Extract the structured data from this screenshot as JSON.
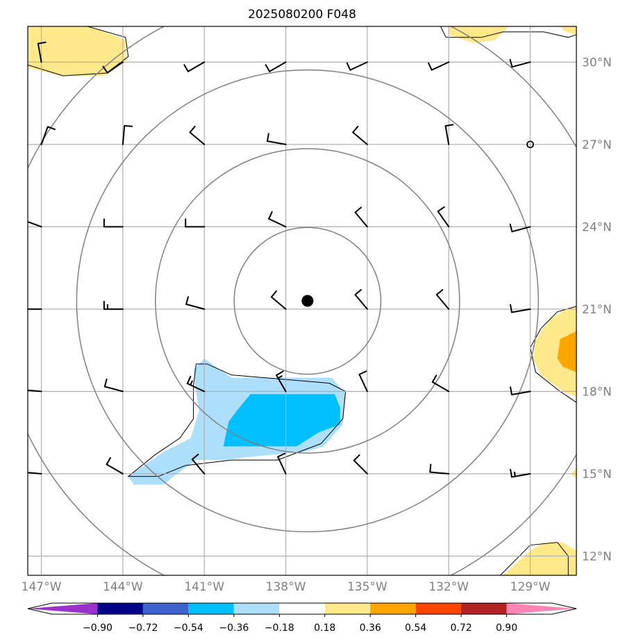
{
  "title": "2025080200 F048",
  "map": {
    "lon_min": -147.5,
    "lon_max": -127.3,
    "lat_min": 11.3,
    "lat_max": 31.3,
    "lat_ticks": [
      {
        "value": 12,
        "label": "12°N"
      },
      {
        "value": 15,
        "label": "15°N"
      },
      {
        "value": 18,
        "label": "18°N"
      },
      {
        "value": 21,
        "label": "21°N"
      },
      {
        "value": 24,
        "label": "24°N"
      },
      {
        "value": 27,
        "label": "27°N"
      },
      {
        "value": 30,
        "label": "30°N"
      }
    ],
    "lon_ticks": [
      {
        "value": -147,
        "label": "147°W"
      },
      {
        "value": -144,
        "label": "144°W"
      },
      {
        "value": -141,
        "label": "141°W"
      },
      {
        "value": -138,
        "label": "138°W"
      },
      {
        "value": -135,
        "label": "135°W"
      },
      {
        "value": -132,
        "label": "132°W"
      },
      {
        "value": -129,
        "label": "129°W"
      }
    ],
    "storm_center": {
      "lon": -137.2,
      "lat": 21.3
    },
    "range_rings_deg": [
      2.7,
      5.6,
      8.5,
      11.4
    ],
    "barb_lons": [
      -147,
      -144,
      -141,
      -138,
      -135,
      -132,
      -129
    ],
    "barb_lats": [
      30,
      27,
      24,
      21,
      18,
      15,
      12
    ],
    "wind_barbs": [
      {
        "lon": -147,
        "lat": 30,
        "dir": 350,
        "spd": 10
      },
      {
        "lon": -144,
        "lat": 30,
        "dir": 235,
        "spd": 10
      },
      {
        "lon": -141,
        "lat": 30,
        "dir": 240,
        "spd": 10
      },
      {
        "lon": -138,
        "lat": 30,
        "dir": 240,
        "spd": 10
      },
      {
        "lon": -135,
        "lat": 30,
        "dir": 245,
        "spd": 10
      },
      {
        "lon": -132,
        "lat": 30,
        "dir": 245,
        "spd": 10
      },
      {
        "lon": -129,
        "lat": 30,
        "dir": 255,
        "spd": 10
      },
      {
        "lon": -147,
        "lat": 27,
        "dir": 20,
        "spd": 10
      },
      {
        "lon": -144,
        "lat": 27,
        "dir": 5,
        "spd": 10
      },
      {
        "lon": -141,
        "lat": 27,
        "dir": 310,
        "spd": 10
      },
      {
        "lon": -138,
        "lat": 27,
        "dir": 280,
        "spd": 10
      },
      {
        "lon": -135,
        "lat": 27,
        "dir": 310,
        "spd": 10
      },
      {
        "lon": -132,
        "lat": 27,
        "dir": 350,
        "spd": 10
      },
      {
        "lon": -129,
        "lat": 27,
        "dir": 0,
        "spd": 0
      },
      {
        "lon": -147,
        "lat": 24,
        "dir": 290,
        "spd": 10
      },
      {
        "lon": -144,
        "lat": 24,
        "dir": 270,
        "spd": 10
      },
      {
        "lon": -141,
        "lat": 24,
        "dir": 270,
        "spd": 10
      },
      {
        "lon": -138,
        "lat": 24,
        "dir": 295,
        "spd": 10
      },
      {
        "lon": -135,
        "lat": 24,
        "dir": 320,
        "spd": 10
      },
      {
        "lon": -132,
        "lat": 24,
        "dir": 325,
        "spd": 10
      },
      {
        "lon": -129,
        "lat": 24,
        "dir": 255,
        "spd": 10
      },
      {
        "lon": -147,
        "lat": 21,
        "dir": 270,
        "spd": 15
      },
      {
        "lon": -144,
        "lat": 21,
        "dir": 270,
        "spd": 15
      },
      {
        "lon": -141,
        "lat": 21,
        "dir": 285,
        "spd": 10
      },
      {
        "lon": -138,
        "lat": 21,
        "dir": 310,
        "spd": 10
      },
      {
        "lon": -135,
        "lat": 21,
        "dir": 320,
        "spd": 10
      },
      {
        "lon": -132,
        "lat": 21,
        "dir": 320,
        "spd": 10
      },
      {
        "lon": -129,
        "lat": 21,
        "dir": 260,
        "spd": 10
      },
      {
        "lon": -147,
        "lat": 18,
        "dir": 275,
        "spd": 15
      },
      {
        "lon": -144,
        "lat": 18,
        "dir": 285,
        "spd": 10
      },
      {
        "lon": -141,
        "lat": 18,
        "dir": 295,
        "spd": 15
      },
      {
        "lon": -138,
        "lat": 18,
        "dir": 330,
        "spd": 15
      },
      {
        "lon": -135,
        "lat": 18,
        "dir": 335,
        "spd": 10
      },
      {
        "lon": -132,
        "lat": 18,
        "dir": 300,
        "spd": 10
      },
      {
        "lon": -129,
        "lat": 18,
        "dir": 260,
        "spd": 10
      },
      {
        "lon": -147,
        "lat": 15,
        "dir": 275,
        "spd": 10
      },
      {
        "lon": -144,
        "lat": 15,
        "dir": 300,
        "spd": 10
      },
      {
        "lon": -141,
        "lat": 15,
        "dir": 320,
        "spd": 10
      },
      {
        "lon": -138,
        "lat": 15,
        "dir": 335,
        "spd": 10
      },
      {
        "lon": -135,
        "lat": 15,
        "dir": 315,
        "spd": 10
      },
      {
        "lon": -132,
        "lat": 15,
        "dir": 275,
        "spd": 10
      },
      {
        "lon": -129,
        "lat": 15,
        "dir": 260,
        "spd": 15
      }
    ],
    "shaded_regions": [
      {
        "level": "0.18 to 0.36",
        "color": "#ffe98a",
        "points": [
          [
            -147.5,
            31.3
          ],
          [
            -145.2,
            31.3
          ],
          [
            -143.9,
            30.8
          ],
          [
            -143.9,
            30.0
          ],
          [
            -144.7,
            29.5
          ],
          [
            -146.3,
            29.5
          ],
          [
            -147.5,
            29.8
          ]
        ]
      },
      {
        "level": "0.18 to 0.36",
        "color": "#ffe98a",
        "points": [
          [
            -132.0,
            31.3
          ],
          [
            -129.8,
            31.3
          ],
          [
            -130.3,
            30.8
          ],
          [
            -131.1,
            30.7
          ],
          [
            -132.0,
            31.0
          ]
        ]
      },
      {
        "level": "0.18 to 0.36",
        "color": "#ffe98a",
        "points": [
          [
            -127.9,
            31.3
          ],
          [
            -127.3,
            31.3
          ],
          [
            -127.3,
            31.0
          ],
          [
            -127.7,
            31.1
          ]
        ]
      },
      {
        "level": "0.18 to 0.36",
        "color": "#ffe98a",
        "points": [
          [
            -127.3,
            21.1
          ],
          [
            -127.7,
            21.0
          ],
          [
            -128.3,
            20.6
          ],
          [
            -128.8,
            19.9
          ],
          [
            -128.9,
            19.2
          ],
          [
            -128.6,
            18.6
          ],
          [
            -127.8,
            18.0
          ],
          [
            -127.3,
            17.8
          ]
        ]
      },
      {
        "level": "0.36 to 0.54",
        "color": "#ffa500",
        "points": [
          [
            -127.3,
            20.2
          ],
          [
            -127.9,
            19.9
          ],
          [
            -128.0,
            19.2
          ],
          [
            -127.8,
            18.9
          ],
          [
            -127.3,
            18.7
          ]
        ]
      },
      {
        "level": "0.18 to 0.36",
        "color": "#ffe98a",
        "points": [
          [
            -127.3,
            15.2
          ],
          [
            -127.5,
            15.0
          ],
          [
            -127.3,
            14.8
          ]
        ]
      },
      {
        "level": "0.18 to 0.36",
        "color": "#ffe98a",
        "points": [
          [
            -130.0,
            11.3
          ],
          [
            -129.0,
            12.2
          ],
          [
            -128.5,
            12.5
          ],
          [
            -127.8,
            12.5
          ],
          [
            -127.3,
            12.2
          ],
          [
            -127.3,
            11.3
          ]
        ]
      },
      {
        "level": "-0.36 to -0.18",
        "color": "#aedffa",
        "points": [
          [
            -141.4,
            18.8
          ],
          [
            -141.0,
            19.2
          ],
          [
            -140.0,
            18.5
          ],
          [
            -136.3,
            18.5
          ],
          [
            -135.8,
            17.9
          ],
          [
            -135.9,
            16.8
          ],
          [
            -136.6,
            16.0
          ],
          [
            -137.3,
            15.8
          ],
          [
            -139.5,
            15.6
          ],
          [
            -140.2,
            15.5
          ],
          [
            -141.3,
            15.5
          ],
          [
            -142.0,
            15.0
          ],
          [
            -142.5,
            14.6
          ],
          [
            -143.6,
            14.6
          ],
          [
            -143.8,
            14.9
          ],
          [
            -142.5,
            15.8
          ],
          [
            -141.5,
            16.3
          ],
          [
            -141.2,
            17.3
          ],
          [
            -141.3,
            18.0
          ]
        ]
      },
      {
        "level": "-0.54 to -0.36",
        "color": "#00bfff",
        "points": [
          [
            -139.3,
            17.9
          ],
          [
            -136.2,
            17.9
          ],
          [
            -136.0,
            17.4
          ],
          [
            -136.0,
            16.8
          ],
          [
            -136.8,
            16.5
          ],
          [
            -137.6,
            16.0
          ],
          [
            -140.3,
            16.0
          ],
          [
            -140.1,
            16.9
          ],
          [
            -139.8,
            17.3
          ]
        ]
      }
    ],
    "coastlines": [
      [
        [
          -147.5,
          31.3
        ],
        [
          -145.3,
          31.3
        ],
        [
          -143.9,
          30.9
        ],
        [
          -143.8,
          30.2
        ],
        [
          -144.6,
          29.6
        ],
        [
          -146.2,
          29.5
        ],
        [
          -147.5,
          29.9
        ]
      ],
      [
        [
          -132.3,
          31.3
        ],
        [
          -132.1,
          30.9
        ],
        [
          -130.8,
          30.9
        ],
        [
          -130.0,
          31.1
        ],
        [
          -128.5,
          31.1
        ],
        [
          -127.6,
          30.9
        ],
        [
          -127.3,
          31.0
        ]
      ],
      [
        [
          -127.3,
          21.1
        ],
        [
          -128.0,
          20.9
        ],
        [
          -128.6,
          20.3
        ],
        [
          -129.0,
          19.6
        ],
        [
          -128.8,
          18.7
        ],
        [
          -127.9,
          18.0
        ],
        [
          -127.3,
          17.6
        ]
      ],
      [
        [
          -141.4,
          18.2
        ],
        [
          -141.3,
          19.0
        ],
        [
          -140.9,
          19.0
        ],
        [
          -140.0,
          18.6
        ],
        [
          -136.4,
          18.3
        ],
        [
          -135.8,
          18.0
        ],
        [
          -135.9,
          17.0
        ],
        [
          -136.7,
          16.1
        ],
        [
          -138.3,
          15.5
        ],
        [
          -140.0,
          15.5
        ],
        [
          -141.7,
          15.3
        ],
        [
          -142.7,
          14.9
        ],
        [
          -143.8,
          14.9
        ],
        [
          -142.8,
          15.7
        ],
        [
          -141.9,
          16.3
        ],
        [
          -141.4,
          17.0
        ],
        [
          -141.4,
          18.2
        ]
      ],
      [
        [
          -130.1,
          11.3
        ],
        [
          -129.0,
          12.4
        ],
        [
          -128.0,
          12.5
        ],
        [
          -127.6,
          12.0
        ],
        [
          -127.6,
          11.3
        ]
      ]
    ]
  },
  "colorbar": {
    "labels": [
      "−0.90",
      "−0.72",
      "−0.54",
      "−0.36",
      "−0.18",
      "0.18",
      "0.36",
      "0.54",
      "0.72",
      "0.90"
    ],
    "colors": [
      "#9932cc",
      "#00008b",
      "#3e63cf",
      "#00bfff",
      "#aedffa",
      "#ffffff",
      "#ffe98a",
      "#ffa500",
      "#ff4500",
      "#b22222",
      "#ff85b4"
    ]
  }
}
